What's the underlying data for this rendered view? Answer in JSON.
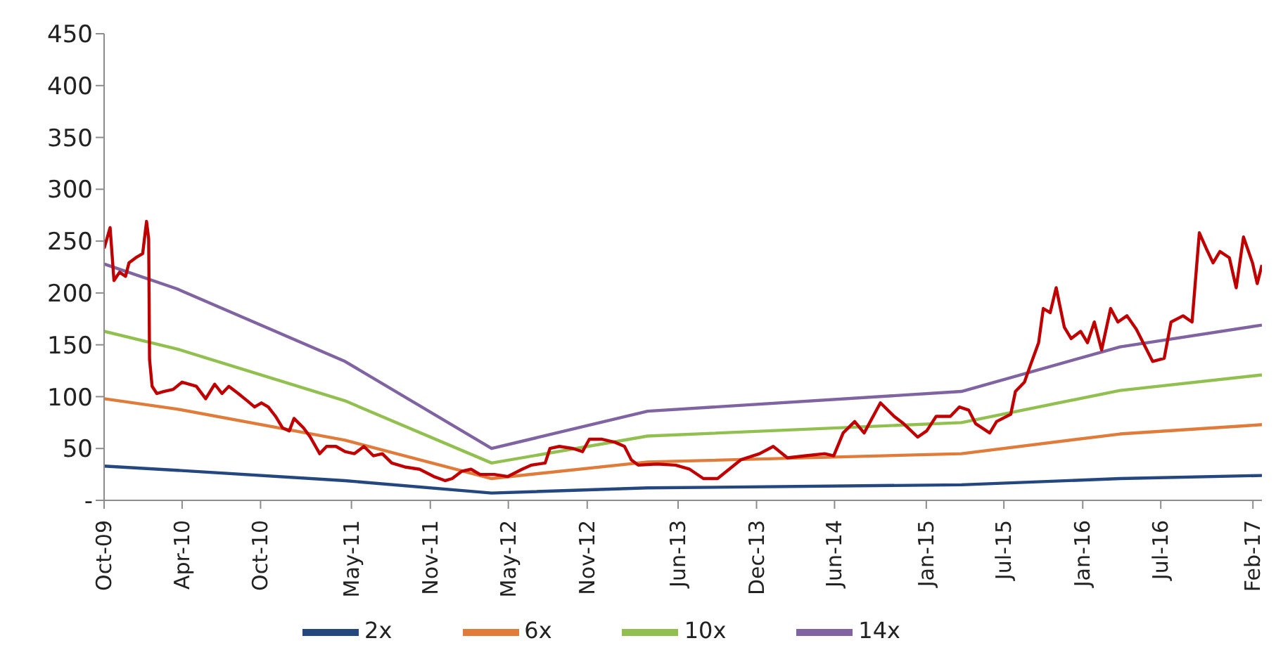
{
  "chart_data": {
    "type": "line",
    "legend": "bottom",
    "marker": "none",
    "line_style": "solid",
    "xlim": [
      "2009-10-01",
      "2017-02-22"
    ],
    "xticks": [
      {
        "value": "2009-10-01",
        "label": "Oct-09"
      },
      {
        "value": "2010-04-01",
        "label": "Apr-10"
      },
      {
        "value": "2010-10-01",
        "label": "Oct-10"
      },
      {
        "value": "2011-05-01",
        "label": "May-11"
      },
      {
        "value": "2011-11-01",
        "label": "Nov-11"
      },
      {
        "value": "2012-05-01",
        "label": "May-12"
      },
      {
        "value": "2012-11-01",
        "label": "Nov-12"
      },
      {
        "value": "2013-06-01",
        "label": "Jun-13"
      },
      {
        "value": "2013-12-01",
        "label": "Dec-13"
      },
      {
        "value": "2014-06-01",
        "label": "Jun-14"
      },
      {
        "value": "2015-01-01",
        "label": "Jan-15"
      },
      {
        "value": "2015-07-01",
        "label": "Jul-15"
      },
      {
        "value": "2016-01-01",
        "label": "Jan-16"
      },
      {
        "value": "2016-07-01",
        "label": "Jul-16"
      },
      {
        "value": "2017-02-01",
        "label": "Feb-17"
      }
    ],
    "ylim": [
      0,
      450
    ],
    "yticks": [
      {
        "value": 0,
        "label": "-"
      },
      50,
      100,
      150,
      200,
      250,
      300,
      350,
      400,
      450
    ],
    "x": [
      "2009-10-01",
      "2010-03-20",
      "2011-04-16",
      "2012-03-23",
      "2013-03-22",
      "2015-03-24",
      "2016-03-28",
      "2017-02-22"
    ],
    "series": [
      {
        "name": "2x",
        "color": "#24477f",
        "values": [
          33,
          29,
          19,
          7,
          12,
          15,
          21,
          24
        ]
      },
      {
        "name": "6x",
        "color": "#e07b39",
        "values": [
          98,
          88,
          58,
          21,
          37,
          45,
          64,
          73
        ]
      },
      {
        "name": "10x",
        "color": "#92c050",
        "values": [
          163,
          146,
          96,
          36,
          62,
          75,
          106,
          121
        ]
      },
      {
        "name": "14x",
        "color": "#8064a2",
        "values": [
          228,
          204,
          134,
          50,
          86,
          105,
          148,
          169
        ]
      },
      {
        "color": "#c00000",
        "x": [
          "2009-10-01",
          "2009-10-15",
          "2009-10-24",
          "2009-11-06",
          "2009-11-20",
          "2009-11-28",
          "2009-12-14",
          "2009-12-30",
          "2010-01-08",
          "2010-01-13",
          "2010-01-15",
          "2010-01-21",
          "2010-02-01",
          "2010-02-17",
          "2010-03-11",
          "2010-04-01",
          "2010-05-04",
          "2010-05-26",
          "2010-06-16",
          "2010-07-03",
          "2010-07-19",
          "2010-08-10",
          "2010-08-31",
          "2010-09-17",
          "2010-10-03",
          "2010-10-19",
          "2010-11-05",
          "2010-11-21",
          "2010-12-07",
          "2010-12-18",
          "2011-01-09",
          "2011-01-25",
          "2011-02-16",
          "2011-03-04",
          "2011-03-26",
          "2011-04-16",
          "2011-05-08",
          "2011-05-30",
          "2011-06-21",
          "2011-07-12",
          "2011-08-03",
          "2011-09-05",
          "2011-10-07",
          "2011-11-09",
          "2011-12-06",
          "2011-12-22",
          "2012-01-13",
          "2012-02-04",
          "2012-02-25",
          "2012-03-29",
          "2012-04-30",
          "2012-06-02",
          "2012-06-24",
          "2012-07-26",
          "2012-08-06",
          "2012-08-28",
          "2012-09-29",
          "2012-10-21",
          "2012-11-06",
          "2012-12-04",
          "2013-01-05",
          "2013-01-27",
          "2013-02-12",
          "2013-02-28",
          "2013-04-13",
          "2013-05-26",
          "2013-06-28",
          "2013-07-30",
          "2013-09-01",
          "2013-09-28",
          "2013-10-25",
          "2013-12-08",
          "2014-01-09",
          "2014-02-11",
          "2014-03-26",
          "2014-05-09",
          "2014-05-30",
          "2014-06-21",
          "2014-07-18",
          "2014-08-09",
          "2014-09-16",
          "2014-10-18",
          "2014-11-09",
          "2014-12-12",
          "2015-01-02",
          "2015-01-24",
          "2015-02-26",
          "2015-03-19",
          "2015-04-10",
          "2015-04-26",
          "2015-05-29",
          "2015-06-14",
          "2015-07-17",
          "2015-07-28",
          "2015-08-18",
          "2015-08-29",
          "2015-09-20",
          "2015-10-01",
          "2015-10-17",
          "2015-10-31",
          "2015-11-19",
          "2015-12-05",
          "2015-12-27",
          "2016-01-12",
          "2016-01-28",
          "2016-02-14",
          "2016-03-06",
          "2016-03-23",
          "2016-04-13",
          "2016-05-05",
          "2016-05-21",
          "2016-06-12",
          "2016-07-09",
          "2016-07-25",
          "2016-08-22",
          "2016-09-12",
          "2016-09-29",
          "2016-10-15",
          "2016-10-31",
          "2016-11-16",
          "2016-12-08",
          "2016-12-24",
          "2017-01-10",
          "2017-01-31",
          "2017-02-11",
          "2017-02-22"
        ],
        "values": [
          243,
          263,
          212,
          220,
          216,
          229,
          234,
          238,
          269,
          252,
          136,
          110,
          103,
          105,
          107,
          114,
          110,
          98,
          112,
          103,
          110,
          103,
          96,
          90,
          94,
          90,
          81,
          70,
          67,
          79,
          70,
          61,
          45,
          52,
          52,
          47,
          45,
          52,
          43,
          45,
          36,
          32,
          30,
          23,
          19,
          21,
          28,
          30,
          25,
          25,
          23,
          30,
          34,
          36,
          50,
          52,
          50,
          47,
          59,
          59,
          56,
          52,
          39,
          34,
          35,
          34,
          30,
          21,
          21,
          30,
          39,
          45,
          52,
          41,
          43,
          45,
          43,
          65,
          76,
          65,
          94,
          81,
          74,
          61,
          67,
          81,
          81,
          90,
          87,
          74,
          65,
          76,
          83,
          105,
          114,
          127,
          152,
          185,
          181,
          205,
          167,
          156,
          163,
          152,
          172,
          145,
          185,
          172,
          178,
          165,
          152,
          134,
          137,
          172,
          178,
          172,
          258,
          243,
          229,
          240,
          234,
          205,
          254,
          229,
          209,
          227
        ]
      }
    ]
  }
}
